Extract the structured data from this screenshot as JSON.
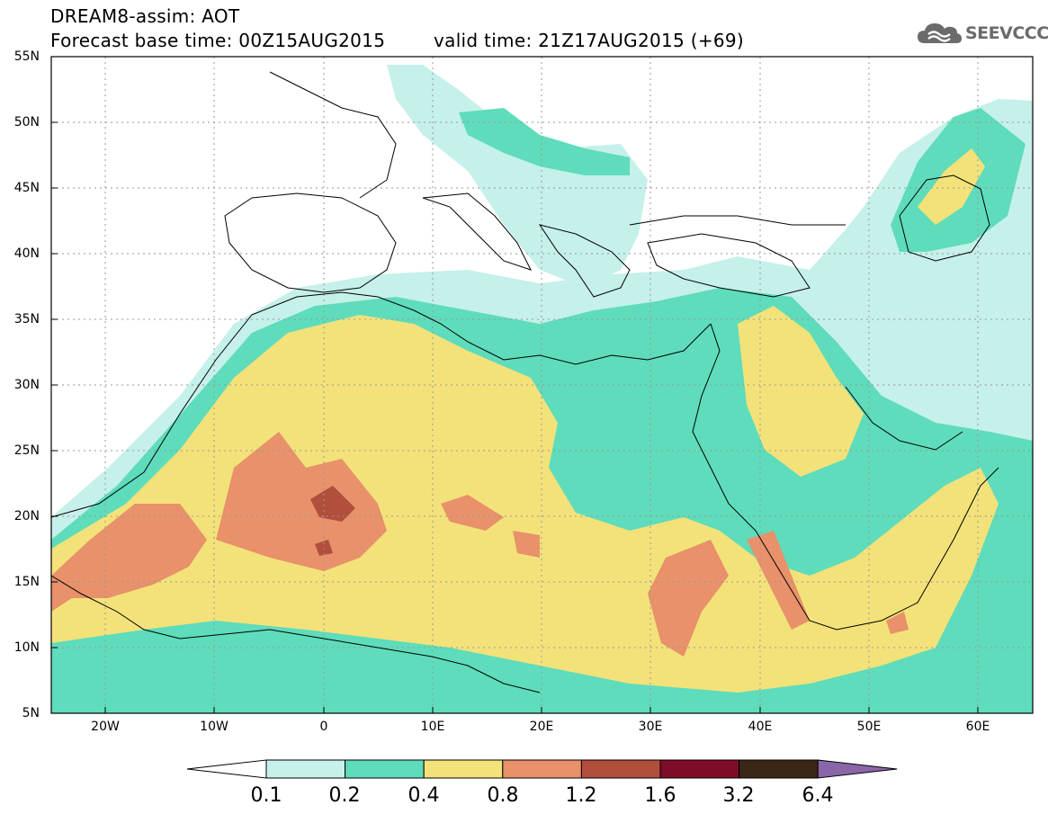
{
  "header": {
    "title": "DREAM8-assim: AOT",
    "base_time": "Forecast base time: 00Z15AUG2015",
    "valid_time": "valid time: 21Z17AUG2015 (+69)",
    "logo_text": "SEEVCCC"
  },
  "map": {
    "variable": "AOT",
    "lat_range": [
      5,
      55
    ],
    "lon_range": [
      -25,
      65
    ],
    "lat_labels": [
      "55N",
      "50N",
      "45N",
      "40N",
      "35N",
      "30N",
      "25N",
      "20N",
      "15N",
      "10N",
      "5N"
    ],
    "lon_labels": [
      "20W",
      "10W",
      "0",
      "10E",
      "20E",
      "30E",
      "40E",
      "50E",
      "60E"
    ],
    "grid": true
  },
  "colorbar": {
    "labels": [
      "0.1",
      "0.2",
      "0.4",
      "0.8",
      "1.2",
      "1.6",
      "3.2",
      "6.4"
    ],
    "colors": [
      "#c6f0ea",
      "#5edcbb",
      "#f3e27a",
      "#e8916a",
      "#b24e3c",
      "#7e0b28",
      "#3b2716",
      "#8a65a8"
    ]
  }
}
